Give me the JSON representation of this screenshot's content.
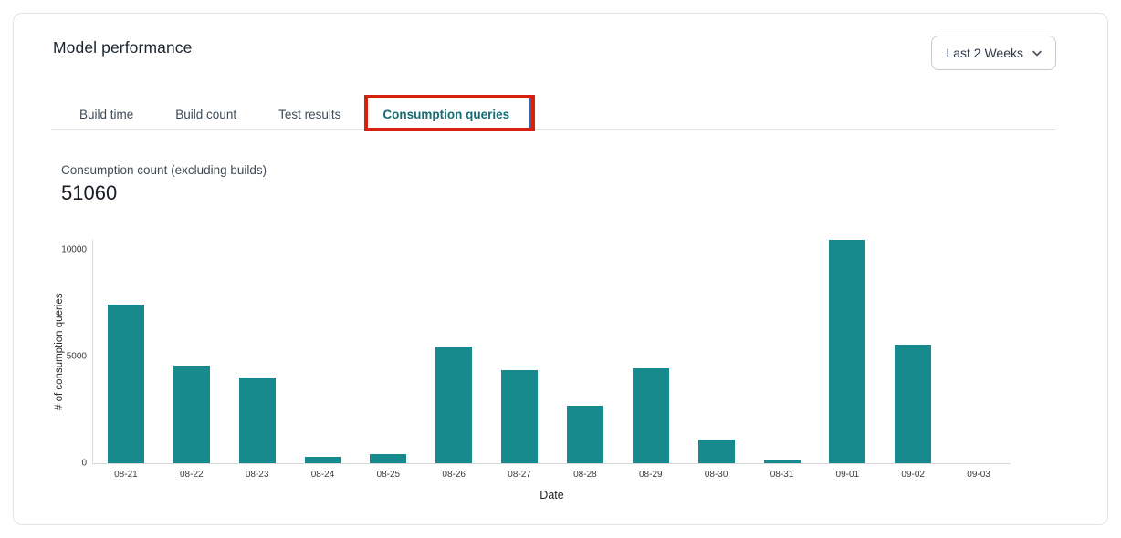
{
  "header": {
    "title": "Model performance",
    "date_range": {
      "value": "Last 2 Weeks"
    }
  },
  "tabs": {
    "items": [
      {
        "label": "Build time",
        "active": false
      },
      {
        "label": "Build count",
        "active": false
      },
      {
        "label": "Test results",
        "active": false
      },
      {
        "label": "Consumption queries",
        "active": true
      }
    ]
  },
  "annotation": {
    "type": "red-highlight-box",
    "target": "Consumption queries",
    "border_color": "#d7210f",
    "inner_edge_color": "#3268ac"
  },
  "metric": {
    "label": "Consumption count (excluding builds)",
    "value": "51060"
  },
  "chart_data": {
    "type": "bar",
    "title": "",
    "xlabel": "Date",
    "ylabel": "# of consumption queries",
    "categories": [
      "08-21",
      "08-22",
      "08-23",
      "08-24",
      "08-25",
      "08-26",
      "08-27",
      "08-28",
      "08-29",
      "08-30",
      "08-31",
      "09-01",
      "09-02",
      "09-03"
    ],
    "values": [
      7430,
      4580,
      4030,
      310,
      420,
      5480,
      4350,
      2700,
      4430,
      1120,
      190,
      10450,
      5570,
      0
    ],
    "ylim": [
      0,
      10500
    ],
    "yticks": [
      0,
      5000,
      10000
    ],
    "grid": false,
    "legend": null,
    "bar_color": "#178a8e"
  },
  "colors": {
    "active_tab": "#166d74",
    "bar_teal": "#178a8e",
    "annotation_red": "#d7210f"
  }
}
